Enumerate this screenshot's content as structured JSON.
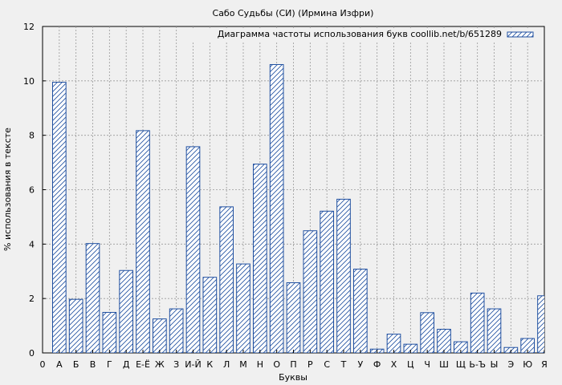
{
  "chart_data": {
    "type": "bar",
    "title": "Сабо Судьбы (СИ) (Ирмина Изфри)",
    "xlabel": "Буквы",
    "ylabel": "% использования в тексте",
    "legend": "Диаграмма частоты использования букв coollib.net/b/651289",
    "legend_position": "top-right",
    "grid": true,
    "ylim": [
      0,
      12
    ],
    "yticks": [
      0,
      2,
      4,
      6,
      8,
      10,
      12
    ],
    "categories": [
      "0",
      "А",
      "Б",
      "В",
      "Г",
      "Д",
      "Е-Ё",
      "Ж",
      "З",
      "И-Й",
      "К",
      "Л",
      "М",
      "Н",
      "О",
      "П",
      "Р",
      "С",
      "Т",
      "У",
      "Ф",
      "Х",
      "Ц",
      "Ч",
      "Ш",
      "Щ",
      "Ь-Ъ",
      "Ы",
      "Э",
      "Ю",
      "Я"
    ],
    "values": [
      0,
      9.95,
      1.97,
      4.02,
      1.49,
      3.03,
      8.17,
      1.25,
      1.62,
      7.58,
      2.78,
      5.37,
      3.27,
      6.94,
      10.6,
      2.58,
      4.49,
      5.21,
      5.65,
      3.08,
      0.14,
      0.69,
      0.32,
      1.48,
      0.87,
      0.41,
      2.2,
      1.62,
      0.2,
      0.53,
      2.1
    ],
    "colors": {
      "bar_stroke": "#1f4fa0",
      "hatch": "#1f4fa0",
      "bar_fill": "#ffffff",
      "grid": "#999999",
      "background": "#f0f0f0"
    }
  }
}
